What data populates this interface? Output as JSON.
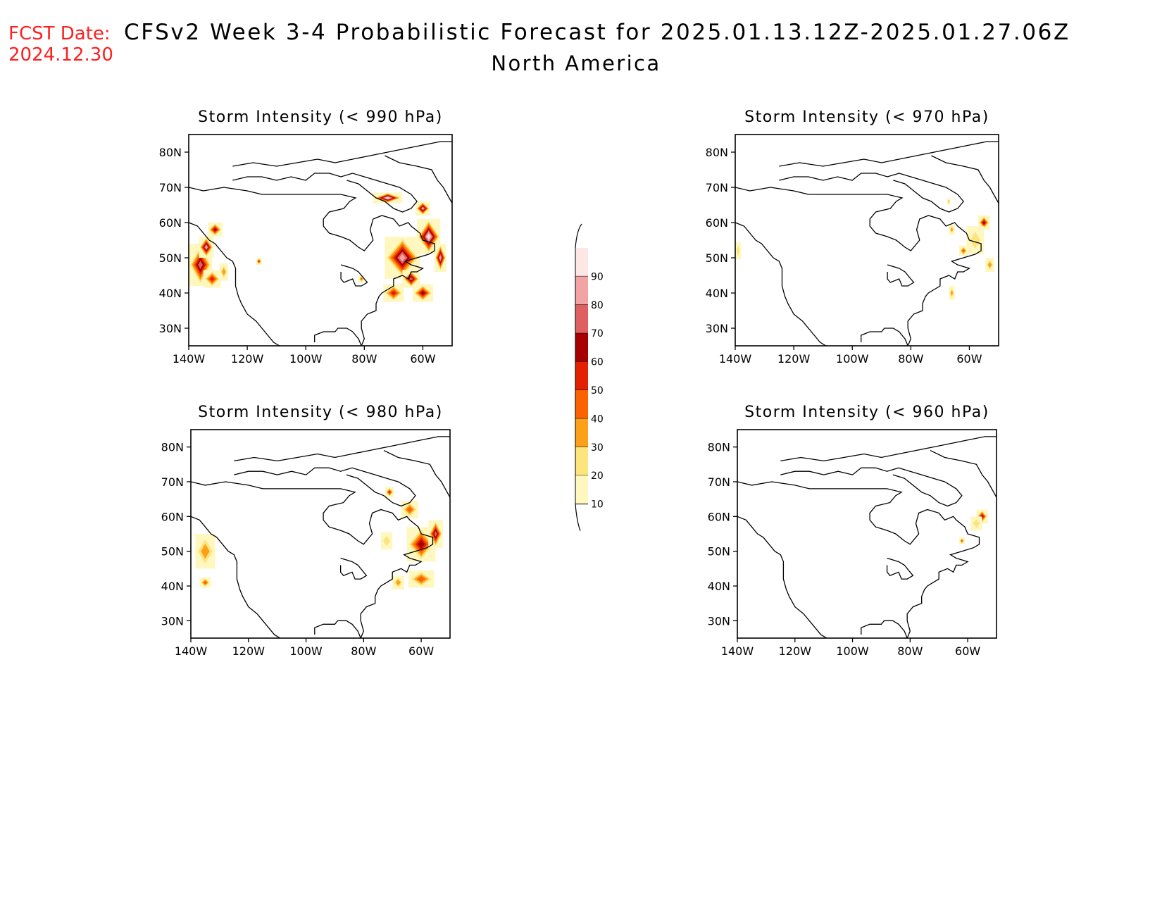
{
  "header": {
    "fcst_label": "FCST Date:",
    "fcst_date": "2024.12.30",
    "title": "CFSv2 Week 3-4 Probabilistic Forecast for 2025.01.13.12Z-2025.01.27.06Z",
    "subtitle": "North America"
  },
  "colors": {
    "fcst": "#ff2020",
    "scale": [
      "#fff7c0",
      "#fde47c",
      "#fca01a",
      "#fb6200",
      "#e32000",
      "#a60000",
      "#de6060",
      "#f2a4a4",
      "#fde6e6"
    ]
  },
  "map_axes": {
    "lon_ticks": [
      "140W",
      "120W",
      "100W",
      "80W",
      "60W"
    ],
    "lat_ticks": [
      "80N",
      "70N",
      "60N",
      "50N",
      "40N",
      "30N"
    ],
    "lon_range": [
      -140,
      -50
    ],
    "lat_range": [
      25,
      85
    ]
  },
  "colorbar": {
    "levels": [
      "90",
      "80",
      "70",
      "60",
      "50",
      "40",
      "30",
      "20",
      "10"
    ]
  },
  "panels": [
    {
      "title": "Storm Intensity (< 990 hPa)",
      "blobs": [
        {
          "lon": -136,
          "lat": 48,
          "level": 6,
          "w": 8,
          "h": 12
        },
        {
          "lon": -134,
          "lat": 53,
          "level": 7,
          "w": 5,
          "h": 6
        },
        {
          "lon": -132,
          "lat": 44,
          "level": 4,
          "w": 6,
          "h": 5
        },
        {
          "lon": -131,
          "lat": 58,
          "level": 5,
          "w": 5,
          "h": 4
        },
        {
          "lon": -128,
          "lat": 46,
          "level": 2,
          "w": 3,
          "h": 5
        },
        {
          "lon": -116,
          "lat": 49,
          "level": 4,
          "w": 2,
          "h": 2
        },
        {
          "lon": -67,
          "lat": 50,
          "level": 7,
          "w": 12,
          "h": 12
        },
        {
          "lon": -58,
          "lat": 56,
          "level": 8,
          "w": 8,
          "h": 10
        },
        {
          "lon": -64,
          "lat": 44,
          "level": 6,
          "w": 6,
          "h": 5
        },
        {
          "lon": -70,
          "lat": 40,
          "level": 4,
          "w": 7,
          "h": 5
        },
        {
          "lon": -60,
          "lat": 40,
          "level": 5,
          "w": 7,
          "h": 5
        },
        {
          "lon": -72,
          "lat": 67,
          "level": 8,
          "w": 10,
          "h": 3
        },
        {
          "lon": -60,
          "lat": 64,
          "level": 7,
          "w": 5,
          "h": 4
        },
        {
          "lon": -54,
          "lat": 50,
          "level": 7,
          "w": 4,
          "h": 8
        },
        {
          "lon": -81,
          "lat": 44,
          "level": 3,
          "w": 2,
          "h": 2
        }
      ]
    },
    {
      "title": "Storm Intensity (< 970 hPa)",
      "blobs": [
        {
          "lon": -139,
          "lat": 52,
          "level": 1,
          "w": 2,
          "h": 5
        },
        {
          "lon": -55,
          "lat": 60,
          "level": 5,
          "w": 4,
          "h": 4
        },
        {
          "lon": -62,
          "lat": 52,
          "level": 3,
          "w": 3,
          "h": 3
        },
        {
          "lon": -66,
          "lat": 58,
          "level": 2,
          "w": 2,
          "h": 3
        },
        {
          "lon": -67,
          "lat": 66,
          "level": 2,
          "w": 1,
          "h": 2
        },
        {
          "lon": -66,
          "lat": 40,
          "level": 2,
          "w": 2,
          "h": 4
        },
        {
          "lon": -53,
          "lat": 48,
          "level": 2,
          "w": 3,
          "h": 4
        },
        {
          "lon": -58,
          "lat": 55,
          "level": 1,
          "w": 6,
          "h": 8
        }
      ]
    },
    {
      "title": "Storm Intensity (< 980 hPa)",
      "blobs": [
        {
          "lon": -135,
          "lat": 50,
          "level": 2,
          "w": 7,
          "h": 10
        },
        {
          "lon": -135,
          "lat": 41,
          "level": 3,
          "w": 4,
          "h": 3
        },
        {
          "lon": -60,
          "lat": 52,
          "level": 5,
          "w": 10,
          "h": 10
        },
        {
          "lon": -55,
          "lat": 55,
          "level": 6,
          "w": 5,
          "h": 8
        },
        {
          "lon": -71,
          "lat": 67,
          "level": 4,
          "w": 3,
          "h": 3
        },
        {
          "lon": -60,
          "lat": 42,
          "level": 3,
          "w": 9,
          "h": 5
        },
        {
          "lon": -68,
          "lat": 41,
          "level": 2,
          "w": 4,
          "h": 4
        },
        {
          "lon": -72,
          "lat": 53,
          "level": 1,
          "w": 4,
          "h": 5
        },
        {
          "lon": -64,
          "lat": 62,
          "level": 3,
          "w": 6,
          "h": 5
        }
      ]
    },
    {
      "title": "Storm Intensity (< 960 hPa)",
      "blobs": [
        {
          "lon": -55,
          "lat": 60,
          "level": 5,
          "w": 4,
          "h": 4
        },
        {
          "lon": -62,
          "lat": 53,
          "level": 3,
          "w": 2,
          "h": 2
        },
        {
          "lon": -57,
          "lat": 58,
          "level": 1,
          "w": 4,
          "h": 4
        }
      ]
    }
  ]
}
